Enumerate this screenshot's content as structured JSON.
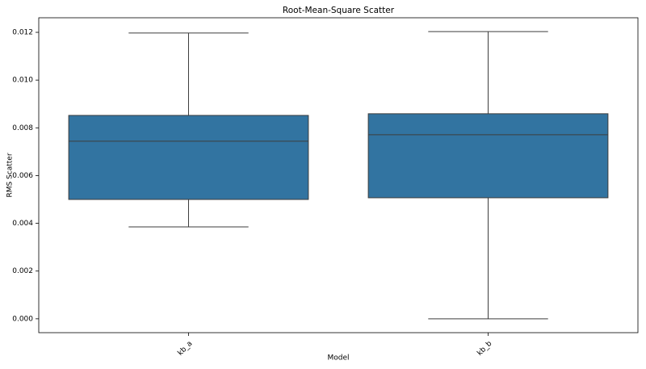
{
  "chart_data": {
    "type": "box",
    "title": "Root-Mean-Square Scatter",
    "x_label": "Model",
    "y_label": "RMS Scatter",
    "categories": [
      "kb_a",
      "kb_b"
    ],
    "boxes": [
      {
        "whisker_low": 0.00385,
        "q1": 0.005,
        "median": 0.00744,
        "q3": 0.00852,
        "whisker_high": 0.01197
      },
      {
        "whisker_low": 0.0,
        "q1": 0.00507,
        "median": 0.00771,
        "q3": 0.00859,
        "whisker_high": 0.01203
      }
    ],
    "color": "#3274a1",
    "ylim": [
      -0.00058,
      0.01261
    ],
    "yticks": [
      {
        "value": 0,
        "label": "0.000"
      },
      {
        "value": 0.002,
        "label": "0.002"
      },
      {
        "value": 0.004,
        "label": "0.004"
      },
      {
        "value": 0.006,
        "label": "0.006"
      },
      {
        "value": 0.008,
        "label": "0.008"
      },
      {
        "value": 0.01,
        "label": "0.010"
      },
      {
        "value": 0.012,
        "label": "0.012"
      }
    ]
  }
}
